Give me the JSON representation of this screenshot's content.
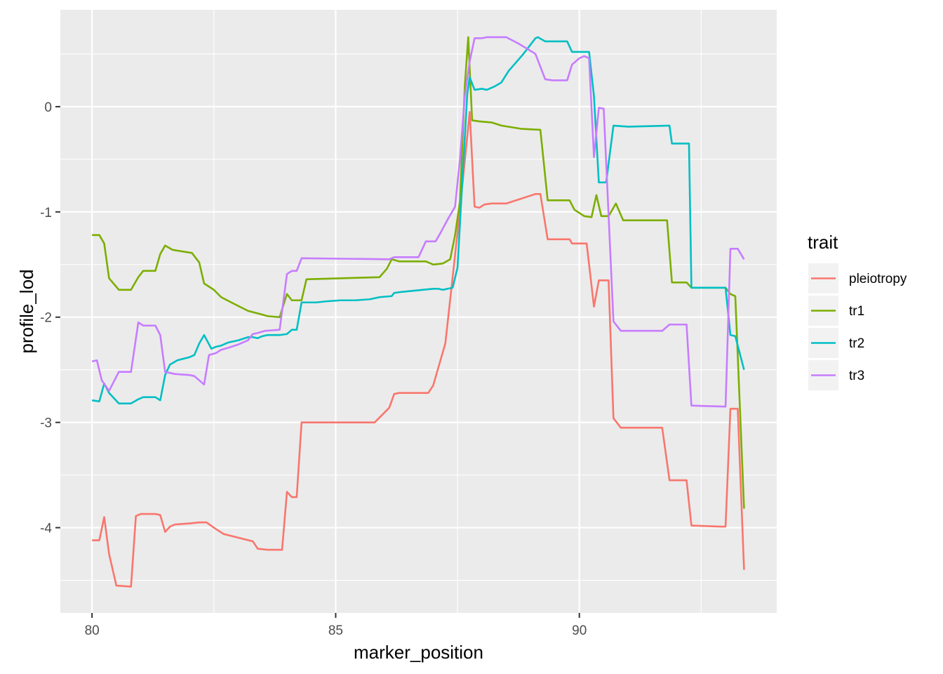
{
  "chart_data": {
    "type": "line",
    "xlabel": "marker_position",
    "ylabel": "profile_lod",
    "xlim": [
      79.35,
      94.05
    ],
    "ylim": [
      -4.81,
      0.92
    ],
    "x_ticks": [
      80,
      85,
      90
    ],
    "y_ticks": [
      -4,
      -3,
      -2,
      -1,
      0
    ],
    "x_tick_labels": [
      "80",
      "85",
      "90"
    ],
    "y_tick_labels": [
      "-4",
      "-3",
      "-2",
      "-1",
      "0"
    ],
    "grid": true,
    "legend": {
      "title": "trait",
      "position": "right"
    },
    "series": [
      {
        "name": "pleiotropy",
        "color": "#F8766D",
        "points": [
          [
            80.0,
            -4.12
          ],
          [
            80.15,
            -4.12
          ],
          [
            80.25,
            -3.9
          ],
          [
            80.35,
            -4.25
          ],
          [
            80.5,
            -4.55
          ],
          [
            80.8,
            -4.56
          ],
          [
            80.9,
            -3.89
          ],
          [
            81.0,
            -3.87
          ],
          [
            81.3,
            -3.87
          ],
          [
            81.4,
            -3.88
          ],
          [
            81.5,
            -4.04
          ],
          [
            81.6,
            -3.99
          ],
          [
            81.7,
            -3.97
          ],
          [
            82.0,
            -3.96
          ],
          [
            82.2,
            -3.95
          ],
          [
            82.35,
            -3.95
          ],
          [
            82.5,
            -4.0
          ],
          [
            82.7,
            -4.06
          ],
          [
            83.3,
            -4.13
          ],
          [
            83.4,
            -4.2
          ],
          [
            83.6,
            -4.21
          ],
          [
            83.9,
            -4.21
          ],
          [
            84.0,
            -3.66
          ],
          [
            84.1,
            -3.71
          ],
          [
            84.2,
            -3.71
          ],
          [
            84.3,
            -3.0
          ],
          [
            85.8,
            -3.0
          ],
          [
            86.1,
            -2.86
          ],
          [
            86.2,
            -2.73
          ],
          [
            86.3,
            -2.72
          ],
          [
            86.9,
            -2.72
          ],
          [
            87.0,
            -2.65
          ],
          [
            87.25,
            -2.25
          ],
          [
            87.5,
            -1.2
          ],
          [
            87.75,
            -0.05
          ],
          [
            87.85,
            -0.95
          ],
          [
            87.95,
            -0.96
          ],
          [
            88.05,
            -0.93
          ],
          [
            88.2,
            -0.92
          ],
          [
            88.5,
            -0.92
          ],
          [
            88.7,
            -0.89
          ],
          [
            89.1,
            -0.83
          ],
          [
            89.2,
            -0.83
          ],
          [
            89.35,
            -1.26
          ],
          [
            89.8,
            -1.26
          ],
          [
            89.85,
            -1.3
          ],
          [
            90.15,
            -1.3
          ],
          [
            90.3,
            -1.9
          ],
          [
            90.4,
            -1.65
          ],
          [
            90.6,
            -1.65
          ],
          [
            90.7,
            -2.96
          ],
          [
            90.85,
            -3.05
          ],
          [
            91.7,
            -3.05
          ],
          [
            91.85,
            -3.55
          ],
          [
            92.2,
            -3.55
          ],
          [
            92.3,
            -3.98
          ],
          [
            92.9,
            -3.99
          ],
          [
            93.0,
            -3.99
          ],
          [
            93.1,
            -2.87
          ],
          [
            93.25,
            -2.87
          ],
          [
            93.38,
            -4.4
          ]
        ]
      },
      {
        "name": "tr1",
        "color": "#7CAE00",
        "points": [
          [
            80.0,
            -1.22
          ],
          [
            80.15,
            -1.22
          ],
          [
            80.25,
            -1.3
          ],
          [
            80.35,
            -1.63
          ],
          [
            80.55,
            -1.74
          ],
          [
            80.8,
            -1.74
          ],
          [
            80.95,
            -1.62
          ],
          [
            81.05,
            -1.56
          ],
          [
            81.3,
            -1.56
          ],
          [
            81.4,
            -1.4
          ],
          [
            81.5,
            -1.32
          ],
          [
            81.65,
            -1.36
          ],
          [
            82.05,
            -1.39
          ],
          [
            82.2,
            -1.48
          ],
          [
            82.3,
            -1.68
          ],
          [
            82.5,
            -1.74
          ],
          [
            82.65,
            -1.81
          ],
          [
            82.9,
            -1.87
          ],
          [
            83.2,
            -1.94
          ],
          [
            83.45,
            -1.97
          ],
          [
            83.6,
            -1.99
          ],
          [
            83.85,
            -2.0
          ],
          [
            84.0,
            -1.78
          ],
          [
            84.1,
            -1.84
          ],
          [
            84.3,
            -1.84
          ],
          [
            84.4,
            -1.64
          ],
          [
            85.9,
            -1.62
          ],
          [
            86.05,
            -1.54
          ],
          [
            86.15,
            -1.45
          ],
          [
            86.3,
            -1.47
          ],
          [
            86.85,
            -1.47
          ],
          [
            87.0,
            -1.5
          ],
          [
            87.2,
            -1.49
          ],
          [
            87.35,
            -1.45
          ],
          [
            87.45,
            -1.22
          ],
          [
            87.55,
            -0.9
          ],
          [
            87.65,
            0.2
          ],
          [
            87.72,
            0.66
          ],
          [
            87.8,
            -0.13
          ],
          [
            87.95,
            -0.14
          ],
          [
            88.2,
            -0.15
          ],
          [
            88.4,
            -0.18
          ],
          [
            88.8,
            -0.21
          ],
          [
            89.2,
            -0.22
          ],
          [
            89.35,
            -0.89
          ],
          [
            89.8,
            -0.89
          ],
          [
            89.9,
            -0.98
          ],
          [
            90.1,
            -1.04
          ],
          [
            90.25,
            -1.05
          ],
          [
            90.35,
            -0.84
          ],
          [
            90.45,
            -1.04
          ],
          [
            90.6,
            -1.04
          ],
          [
            90.75,
            -0.92
          ],
          [
            90.9,
            -1.08
          ],
          [
            91.8,
            -1.08
          ],
          [
            91.9,
            -1.67
          ],
          [
            92.2,
            -1.67
          ],
          [
            92.3,
            -1.72
          ],
          [
            93.0,
            -1.72
          ],
          [
            93.1,
            -1.78
          ],
          [
            93.2,
            -1.8
          ],
          [
            93.38,
            -3.82
          ]
        ]
      },
      {
        "name": "tr2",
        "color": "#00BFC4",
        "points": [
          [
            80.0,
            -2.79
          ],
          [
            80.15,
            -2.8
          ],
          [
            80.25,
            -2.63
          ],
          [
            80.35,
            -2.72
          ],
          [
            80.55,
            -2.82
          ],
          [
            80.8,
            -2.82
          ],
          [
            80.95,
            -2.78
          ],
          [
            81.05,
            -2.76
          ],
          [
            81.3,
            -2.76
          ],
          [
            81.4,
            -2.79
          ],
          [
            81.5,
            -2.55
          ],
          [
            81.6,
            -2.45
          ],
          [
            81.75,
            -2.41
          ],
          [
            82.0,
            -2.38
          ],
          [
            82.1,
            -2.36
          ],
          [
            82.2,
            -2.25
          ],
          [
            82.3,
            -2.17
          ],
          [
            82.45,
            -2.3
          ],
          [
            82.55,
            -2.28
          ],
          [
            82.65,
            -2.27
          ],
          [
            82.8,
            -2.24
          ],
          [
            83.0,
            -2.22
          ],
          [
            83.2,
            -2.19
          ],
          [
            83.3,
            -2.19
          ],
          [
            83.4,
            -2.2
          ],
          [
            83.5,
            -2.18
          ],
          [
            83.6,
            -2.17
          ],
          [
            83.85,
            -2.17
          ],
          [
            84.0,
            -2.16
          ],
          [
            84.1,
            -2.12
          ],
          [
            84.2,
            -2.12
          ],
          [
            84.3,
            -1.86
          ],
          [
            84.6,
            -1.86
          ],
          [
            84.8,
            -1.85
          ],
          [
            85.1,
            -1.84
          ],
          [
            85.4,
            -1.84
          ],
          [
            85.7,
            -1.83
          ],
          [
            85.9,
            -1.81
          ],
          [
            86.15,
            -1.8
          ],
          [
            86.2,
            -1.77
          ],
          [
            86.35,
            -1.76
          ],
          [
            87.0,
            -1.73
          ],
          [
            87.1,
            -1.73
          ],
          [
            87.2,
            -1.74
          ],
          [
            87.4,
            -1.72
          ],
          [
            87.5,
            -1.53
          ],
          [
            87.6,
            -0.7
          ],
          [
            87.7,
            0.12
          ],
          [
            87.75,
            0.28
          ],
          [
            87.85,
            0.16
          ],
          [
            88.0,
            0.17
          ],
          [
            88.1,
            0.16
          ],
          [
            88.25,
            0.19
          ],
          [
            88.4,
            0.23
          ],
          [
            88.55,
            0.34
          ],
          [
            88.85,
            0.5
          ],
          [
            89.1,
            0.65
          ],
          [
            89.15,
            0.66
          ],
          [
            89.3,
            0.62
          ],
          [
            89.75,
            0.62
          ],
          [
            89.85,
            0.52
          ],
          [
            90.0,
            0.52
          ],
          [
            90.2,
            0.52
          ],
          [
            90.3,
            0.1
          ],
          [
            90.4,
            -0.72
          ],
          [
            90.55,
            -0.72
          ],
          [
            90.7,
            -0.18
          ],
          [
            91.0,
            -0.19
          ],
          [
            91.85,
            -0.18
          ],
          [
            91.9,
            -0.35
          ],
          [
            92.15,
            -0.35
          ],
          [
            92.25,
            -0.35
          ],
          [
            92.3,
            -1.72
          ],
          [
            93.0,
            -1.72
          ],
          [
            93.1,
            -2.17
          ],
          [
            93.2,
            -2.18
          ],
          [
            93.38,
            -2.5
          ]
        ]
      },
      {
        "name": "tr3",
        "color": "#C77CFF",
        "points": [
          [
            80.0,
            -2.42
          ],
          [
            80.1,
            -2.41
          ],
          [
            80.2,
            -2.6
          ],
          [
            80.35,
            -2.7
          ],
          [
            80.55,
            -2.52
          ],
          [
            80.8,
            -2.52
          ],
          [
            80.95,
            -2.05
          ],
          [
            81.05,
            -2.08
          ],
          [
            81.3,
            -2.08
          ],
          [
            81.4,
            -2.17
          ],
          [
            81.5,
            -2.52
          ],
          [
            81.7,
            -2.54
          ],
          [
            82.0,
            -2.55
          ],
          [
            82.1,
            -2.56
          ],
          [
            82.3,
            -2.64
          ],
          [
            82.4,
            -2.36
          ],
          [
            82.55,
            -2.34
          ],
          [
            82.65,
            -2.31
          ],
          [
            82.8,
            -2.29
          ],
          [
            83.0,
            -2.26
          ],
          [
            83.2,
            -2.22
          ],
          [
            83.3,
            -2.16
          ],
          [
            83.4,
            -2.15
          ],
          [
            83.55,
            -2.13
          ],
          [
            83.85,
            -2.12
          ],
          [
            84.0,
            -1.59
          ],
          [
            84.1,
            -1.56
          ],
          [
            84.2,
            -1.56
          ],
          [
            84.3,
            -1.44
          ],
          [
            86.1,
            -1.45
          ],
          [
            86.2,
            -1.43
          ],
          [
            86.7,
            -1.43
          ],
          [
            86.85,
            -1.28
          ],
          [
            87.05,
            -1.28
          ],
          [
            87.15,
            -1.2
          ],
          [
            87.3,
            -1.07
          ],
          [
            87.45,
            -0.95
          ],
          [
            87.55,
            -0.5
          ],
          [
            87.65,
            0.1
          ],
          [
            87.75,
            0.43
          ],
          [
            87.85,
            0.65
          ],
          [
            88.0,
            0.65
          ],
          [
            88.1,
            0.66
          ],
          [
            88.5,
            0.66
          ],
          [
            88.75,
            0.6
          ],
          [
            89.0,
            0.53
          ],
          [
            89.1,
            0.5
          ],
          [
            89.3,
            0.26
          ],
          [
            89.45,
            0.25
          ],
          [
            89.75,
            0.25
          ],
          [
            89.85,
            0.4
          ],
          [
            90.0,
            0.46
          ],
          [
            90.1,
            0.48
          ],
          [
            90.2,
            0.46
          ],
          [
            90.3,
            -0.48
          ],
          [
            90.4,
            -0.01
          ],
          [
            90.5,
            -0.02
          ],
          [
            90.7,
            -2.04
          ],
          [
            90.85,
            -2.13
          ],
          [
            91.7,
            -2.13
          ],
          [
            91.85,
            -2.07
          ],
          [
            92.2,
            -2.07
          ],
          [
            92.3,
            -2.84
          ],
          [
            93.0,
            -2.85
          ],
          [
            93.1,
            -1.35
          ],
          [
            93.25,
            -1.35
          ],
          [
            93.38,
            -1.45
          ]
        ]
      }
    ]
  }
}
